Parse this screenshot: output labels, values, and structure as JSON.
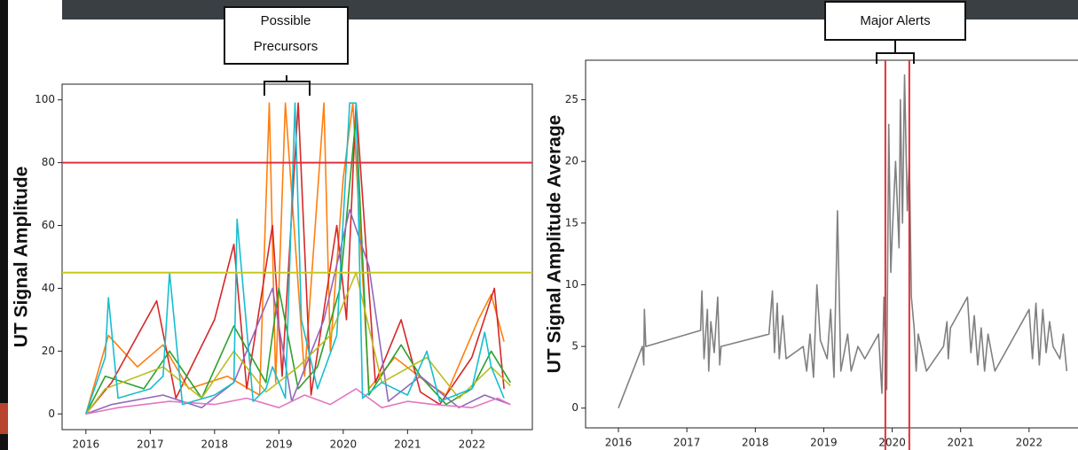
{
  "chart_data": [
    {
      "type": "line",
      "ylabel": "UT Signal Amplitude",
      "annotation": [
        "Possible",
        "Precursors"
      ],
      "xlim": [
        2015.63,
        2022.94
      ],
      "ylim": [
        -5,
        105
      ],
      "xticks": [
        2016,
        2017,
        2018,
        2019,
        2020,
        2021,
        2022
      ],
      "yticks": [
        0,
        20,
        40,
        60,
        80,
        100
      ],
      "hlines": [
        {
          "value": 80,
          "color": "#e0303a"
        },
        {
          "value": 45,
          "color": "#c8c820"
        }
      ],
      "series": [
        {
          "color": "#ff7f0e",
          "x": [
            2016.0,
            2016.35,
            2016.8,
            2017.2,
            2017.6,
            2018.2,
            2018.7,
            2018.85,
            2018.95,
            2019.1,
            2019.4,
            2019.7,
            2019.8,
            2020.0,
            2020.15,
            2020.4,
            2020.8,
            2021.3,
            2021.6,
            2022.1,
            2022.3,
            2022.5
          ],
          "values": [
            0,
            25,
            15,
            22,
            8,
            12,
            6,
            99,
            10,
            99,
            12,
            99,
            20,
            75,
            99,
            8,
            18,
            10,
            6,
            30,
            38,
            23
          ]
        },
        {
          "color": "#d62728",
          "x": [
            2016.0,
            2016.4,
            2017.1,
            2017.4,
            2018.0,
            2018.3,
            2018.5,
            2018.9,
            2019.05,
            2019.3,
            2019.5,
            2019.9,
            2020.05,
            2020.2,
            2020.5,
            2020.9,
            2021.2,
            2021.5,
            2022.0,
            2022.35,
            2022.5
          ],
          "values": [
            0,
            10,
            36,
            5,
            30,
            54,
            8,
            60,
            12,
            99,
            6,
            60,
            30,
            99,
            10,
            30,
            7,
            3,
            18,
            40,
            8
          ]
        },
        {
          "color": "#2ca02c",
          "x": [
            2016.0,
            2016.3,
            2016.9,
            2017.3,
            2017.8,
            2018.3,
            2018.8,
            2019.0,
            2019.3,
            2019.6,
            2019.95,
            2020.2,
            2020.4,
            2020.9,
            2021.2,
            2021.6,
            2022.0,
            2022.3,
            2022.6
          ],
          "values": [
            0,
            12,
            8,
            20,
            5,
            28,
            10,
            40,
            8,
            15,
            40,
            95,
            6,
            22,
            12,
            3,
            8,
            20,
            10
          ]
        },
        {
          "color": "#9467bd",
          "x": [
            2016.0,
            2016.4,
            2017.2,
            2017.8,
            2018.3,
            2018.9,
            2019.2,
            2019.7,
            2020.1,
            2020.4,
            2020.7,
            2021.2,
            2021.8,
            2022.2,
            2022.6
          ],
          "values": [
            0,
            3,
            6,
            2,
            10,
            40,
            4,
            30,
            65,
            47,
            4,
            12,
            2,
            6,
            3
          ]
        },
        {
          "color": "#e377c2",
          "x": [
            2016.0,
            2016.5,
            2017.3,
            2018.0,
            2018.5,
            2019.0,
            2019.4,
            2019.8,
            2020.2,
            2020.6,
            2021.0,
            2021.4,
            2022.0,
            2022.4,
            2022.6
          ],
          "values": [
            0,
            2,
            4,
            3,
            5,
            2,
            6,
            3,
            8,
            2,
            4,
            3,
            2,
            5,
            3
          ]
        },
        {
          "color": "#bcbd22",
          "x": [
            2016.0,
            2016.3,
            2017.2,
            2017.8,
            2018.3,
            2018.8,
            2019.3,
            2019.8,
            2020.2,
            2020.6,
            2021.3,
            2021.8,
            2022.3,
            2022.6
          ],
          "values": [
            0,
            8,
            15,
            5,
            20,
            7,
            15,
            25,
            45,
            10,
            18,
            5,
            15,
            9
          ]
        },
        {
          "color": "#17becf",
          "x": [
            2016.0,
            2016.3,
            2016.35,
            2016.5,
            2017.0,
            2017.2,
            2017.3,
            2017.5,
            2018.0,
            2018.3,
            2018.35,
            2018.6,
            2018.8,
            2018.9,
            2019.1,
            2019.25,
            2019.35,
            2019.6,
            2019.9,
            2020.1,
            2020.2,
            2020.3,
            2020.6,
            2021.0,
            2021.3,
            2021.5,
            2022.0,
            2022.2,
            2022.3,
            2022.5
          ],
          "values": [
            0,
            18,
            37,
            5,
            8,
            12,
            45,
            3,
            6,
            10,
            62,
            4,
            8,
            15,
            5,
            99,
            30,
            8,
            25,
            99,
            99,
            5,
            10,
            6,
            20,
            4,
            8,
            26,
            15,
            5
          ]
        }
      ]
    },
    {
      "type": "line",
      "ylabel": "UT Signal Amplitude Average",
      "annotation": [
        "Major Alerts"
      ],
      "xlim": [
        2015.52,
        2022.65
      ],
      "ylim": [
        -1.6,
        28.2
      ],
      "xticks": [
        2016,
        2017,
        2018,
        2019,
        2020,
        2021,
        2022
      ],
      "yticks": [
        0,
        5,
        10,
        15,
        20,
        25
      ],
      "vlines": [
        {
          "value": 2019.9,
          "color": "#e0303a"
        },
        {
          "value": 2020.25,
          "color": "#e0303a"
        }
      ],
      "series": [
        {
          "color": "#808080",
          "x": [
            2016.0,
            2016.35,
            2016.37,
            2016.38,
            2016.4,
            2017.2,
            2017.22,
            2017.25,
            2017.3,
            2017.32,
            2017.35,
            2017.4,
            2017.45,
            2017.48,
            2017.5,
            2018.2,
            2018.25,
            2018.28,
            2018.32,
            2018.35,
            2018.4,
            2018.45,
            2018.7,
            2018.75,
            2018.8,
            2018.85,
            2018.9,
            2018.95,
            2019.05,
            2019.1,
            2019.15,
            2019.2,
            2019.25,
            2019.35,
            2019.4,
            2019.5,
            2019.6,
            2019.8,
            2019.85,
            2019.88,
            2019.92,
            2019.95,
            2019.98,
            2020.0,
            2020.05,
            2020.1,
            2020.12,
            2020.15,
            2020.18,
            2020.22,
            2020.25,
            2020.28,
            2020.32,
            2020.35,
            2020.38,
            2020.5,
            2020.75,
            2020.8,
            2020.82,
            2020.85,
            2021.1,
            2021.15,
            2021.2,
            2021.25,
            2021.3,
            2021.35,
            2021.4,
            2021.5,
            2022.0,
            2022.05,
            2022.1,
            2022.15,
            2022.2,
            2022.25,
            2022.3,
            2022.35,
            2022.45,
            2022.5,
            2022.55
          ],
          "values": [
            0,
            5,
            3.5,
            8,
            5,
            6.3,
            9.5,
            4,
            8,
            3,
            7,
            4.5,
            9,
            3.5,
            5,
            6,
            9.5,
            4.5,
            8.5,
            4,
            7.5,
            4,
            5,
            3,
            6,
            2.5,
            10,
            5.5,
            4,
            8,
            2.5,
            16,
            3,
            6,
            3,
            5,
            4,
            6,
            1.2,
            9,
            1.5,
            23,
            11,
            14,
            20,
            13,
            25,
            15,
            27,
            16,
            20,
            9,
            6.5,
            3,
            6,
            3,
            5,
            7,
            4,
            6.5,
            9,
            4.5,
            7.5,
            3.5,
            6.5,
            3,
            6,
            3,
            8,
            4,
            8.5,
            3.5,
            8,
            4.5,
            7,
            5,
            4,
            6,
            3
          ]
        }
      ]
    }
  ]
}
